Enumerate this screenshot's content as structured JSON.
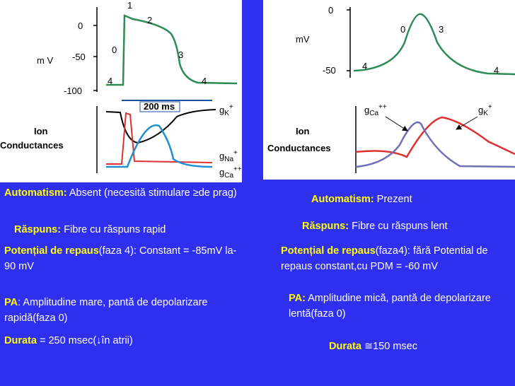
{
  "left_figure": {
    "axis": {
      "unit": "m V",
      "ticks": [
        "0",
        "-50",
        "-100"
      ]
    },
    "phases": [
      "1",
      "2",
      "0",
      "3",
      "4",
      "4"
    ],
    "duration_marker": "200 ms",
    "conductance_title": [
      "Ion",
      "Conductances"
    ],
    "currents": [
      {
        "symbol": "g",
        "sub": "K",
        "sup": "+"
      },
      {
        "symbol": "g",
        "sub": "Na",
        "sup": "+"
      },
      {
        "symbol": "g",
        "sub": "Ca",
        "sup": "++"
      }
    ]
  },
  "right_figure": {
    "axis": {
      "unit": "mV",
      "ticks": [
        "0",
        "-50"
      ]
    },
    "phases": [
      "4",
      "0",
      "3",
      "4"
    ],
    "conductance_title": [
      "Ion",
      "Conductances"
    ],
    "currents": [
      {
        "symbol": "g",
        "sub": "Ca",
        "sup": "++"
      },
      {
        "symbol": "g",
        "sub": "K",
        "sup": "+"
      }
    ]
  },
  "left_text": {
    "automatism": {
      "label": "Automatism:",
      "text": "Absent (necesită stimulare ≥de prag)"
    },
    "raspuns": {
      "label": "Răspuns:",
      "text": "Fibre cu răspuns rapid"
    },
    "repaus": {
      "label": "Potențial de repaus",
      "text": "(faza 4): Constant = -85mV la-90 mV"
    },
    "pa": {
      "label": "PA",
      "text": ": Amplitudine mare, pantă de depolarizare rapidă(faza 0)"
    },
    "durata": {
      "label": "Durata",
      "text": "= 250 msec(↓în atrii)"
    }
  },
  "right_text": {
    "automatism": {
      "label": "Automatism:",
      "text": "Prezent"
    },
    "raspuns": {
      "label": "Răspuns:",
      "text": "Fibre cu răspuns lent"
    },
    "repaus": {
      "label": "Potențial de repaus",
      "text": "(faza4): fără Potential de repaus constant,cu PDM = -60 mV"
    },
    "pa": {
      "label": "PA:",
      "text": "Amplitudine mică, pantă de depolarizare lentă(faza 0)"
    },
    "durata": {
      "label": "Durata",
      "text": "≅150 msec"
    }
  }
}
